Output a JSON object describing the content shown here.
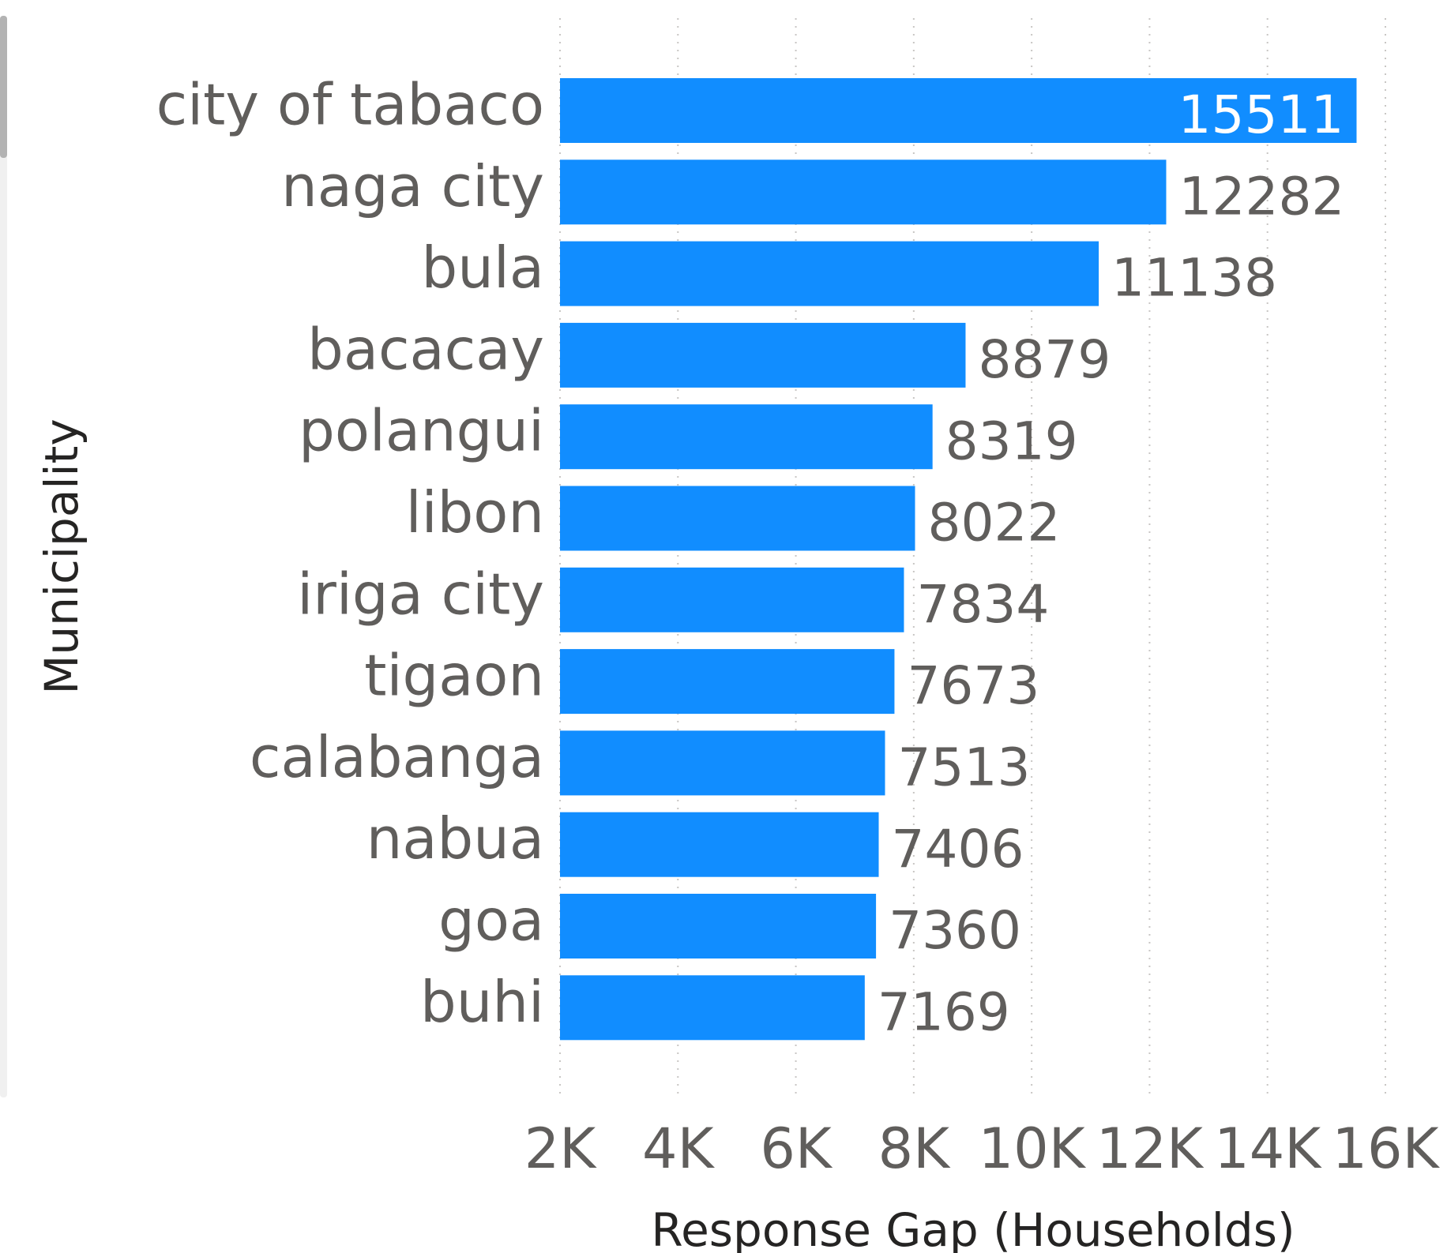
{
  "chart_data": {
    "type": "hbar",
    "categories": [
      "city of tabaco",
      "naga city",
      "bula",
      "bacacay",
      "polangui",
      "libon",
      "iriga city",
      "tigaon",
      "calabanga",
      "nabua",
      "goa",
      "buhi"
    ],
    "values": [
      15511,
      12282,
      11138,
      8879,
      8319,
      8022,
      7834,
      7673,
      7513,
      7406,
      7360,
      7169
    ],
    "color": "#118dff",
    "xlim": [
      2000,
      16000
    ],
    "xticks": [
      {
        "value": 2000,
        "label": "2K"
      },
      {
        "value": 4000,
        "label": "4K"
      },
      {
        "value": 6000,
        "label": "6K"
      },
      {
        "value": 8000,
        "label": "8K"
      },
      {
        "value": 10000,
        "label": "10K"
      },
      {
        "value": 12000,
        "label": "12K"
      },
      {
        "value": 14000,
        "label": "14K"
      },
      {
        "value": 16000,
        "label": "16K"
      }
    ],
    "x_label": "Response Gap (Households)",
    "y_label": "Municipality",
    "grid": true
  }
}
